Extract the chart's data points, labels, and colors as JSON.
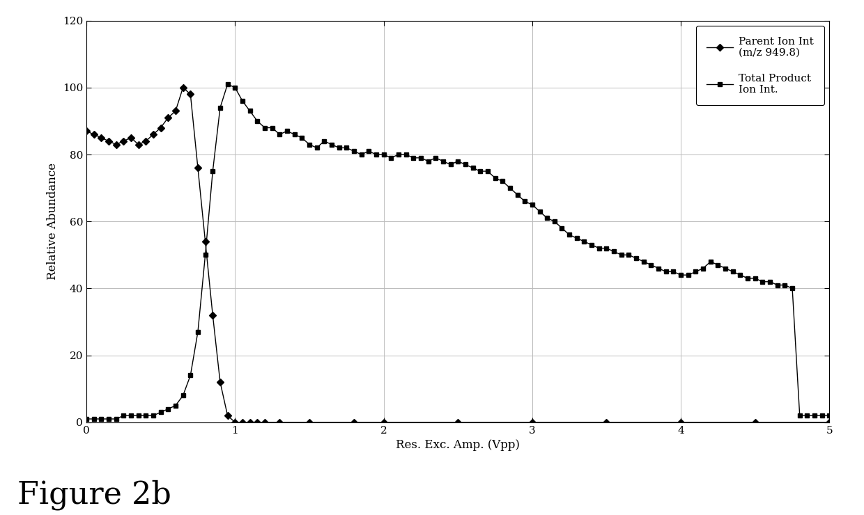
{
  "parent_ion_x": [
    0.0,
    0.05,
    0.1,
    0.15,
    0.2,
    0.25,
    0.3,
    0.35,
    0.4,
    0.45,
    0.5,
    0.55,
    0.6,
    0.65,
    0.7,
    0.75,
    0.8,
    0.85,
    0.9,
    0.95,
    1.0,
    1.05,
    1.1,
    1.15,
    1.2,
    1.3,
    1.5,
    1.8,
    2.0,
    2.5,
    3.0,
    3.5,
    4.0,
    4.5,
    5.0
  ],
  "parent_ion_y": [
    87,
    86,
    85,
    84,
    83,
    84,
    85,
    83,
    84,
    86,
    88,
    91,
    93,
    100,
    98,
    76,
    54,
    32,
    12,
    2,
    0,
    0,
    0,
    0,
    0,
    0,
    0,
    0,
    0,
    0,
    0,
    0,
    0,
    0,
    0
  ],
  "product_ion_x": [
    0.0,
    0.05,
    0.1,
    0.15,
    0.2,
    0.25,
    0.3,
    0.35,
    0.4,
    0.45,
    0.5,
    0.55,
    0.6,
    0.65,
    0.7,
    0.75,
    0.8,
    0.85,
    0.9,
    0.95,
    1.0,
    1.05,
    1.1,
    1.15,
    1.2,
    1.25,
    1.3,
    1.35,
    1.4,
    1.45,
    1.5,
    1.55,
    1.6,
    1.65,
    1.7,
    1.75,
    1.8,
    1.85,
    1.9,
    1.95,
    2.0,
    2.05,
    2.1,
    2.15,
    2.2,
    2.25,
    2.3,
    2.35,
    2.4,
    2.45,
    2.5,
    2.55,
    2.6,
    2.65,
    2.7,
    2.75,
    2.8,
    2.85,
    2.9,
    2.95,
    3.0,
    3.05,
    3.1,
    3.15,
    3.2,
    3.25,
    3.3,
    3.35,
    3.4,
    3.45,
    3.5,
    3.55,
    3.6,
    3.65,
    3.7,
    3.75,
    3.8,
    3.85,
    3.9,
    3.95,
    4.0,
    4.05,
    4.1,
    4.15,
    4.2,
    4.25,
    4.3,
    4.35,
    4.4,
    4.45,
    4.5,
    4.55,
    4.6,
    4.65,
    4.7,
    4.75,
    4.8,
    4.85,
    4.9,
    4.95,
    5.0
  ],
  "product_ion_y": [
    1,
    1,
    1,
    1,
    1,
    2,
    2,
    2,
    2,
    2,
    3,
    4,
    5,
    8,
    14,
    27,
    50,
    75,
    94,
    101,
    100,
    96,
    93,
    90,
    88,
    88,
    86,
    87,
    86,
    85,
    83,
    82,
    84,
    83,
    82,
    82,
    81,
    80,
    81,
    80,
    80,
    79,
    80,
    80,
    79,
    79,
    78,
    79,
    78,
    77,
    78,
    77,
    76,
    75,
    75,
    73,
    72,
    70,
    68,
    66,
    65,
    63,
    61,
    60,
    58,
    56,
    55,
    54,
    53,
    52,
    52,
    51,
    50,
    50,
    49,
    48,
    47,
    46,
    45,
    45,
    44,
    44,
    45,
    46,
    48,
    47,
    46,
    45,
    44,
    43,
    43,
    42,
    42,
    41,
    41,
    40,
    2,
    2,
    2,
    2,
    2
  ],
  "xlim": [
    0,
    5
  ],
  "ylim": [
    0,
    120
  ],
  "yticks": [
    0,
    20,
    40,
    60,
    80,
    100,
    120
  ],
  "xticks": [
    0,
    1,
    2,
    3,
    4,
    5
  ],
  "xlabel": "Res. Exc. Amp. (Vpp)",
  "ylabel": "Relative Abundance",
  "legend1": "Parent Ion Int\n(m/z 949.8)",
  "legend2": "Total Product\nIon Int.",
  "figure_label": "Figure 2b",
  "line_color": "#000000",
  "bg_color": "#ffffff",
  "grid_color": "#bbbbbb"
}
